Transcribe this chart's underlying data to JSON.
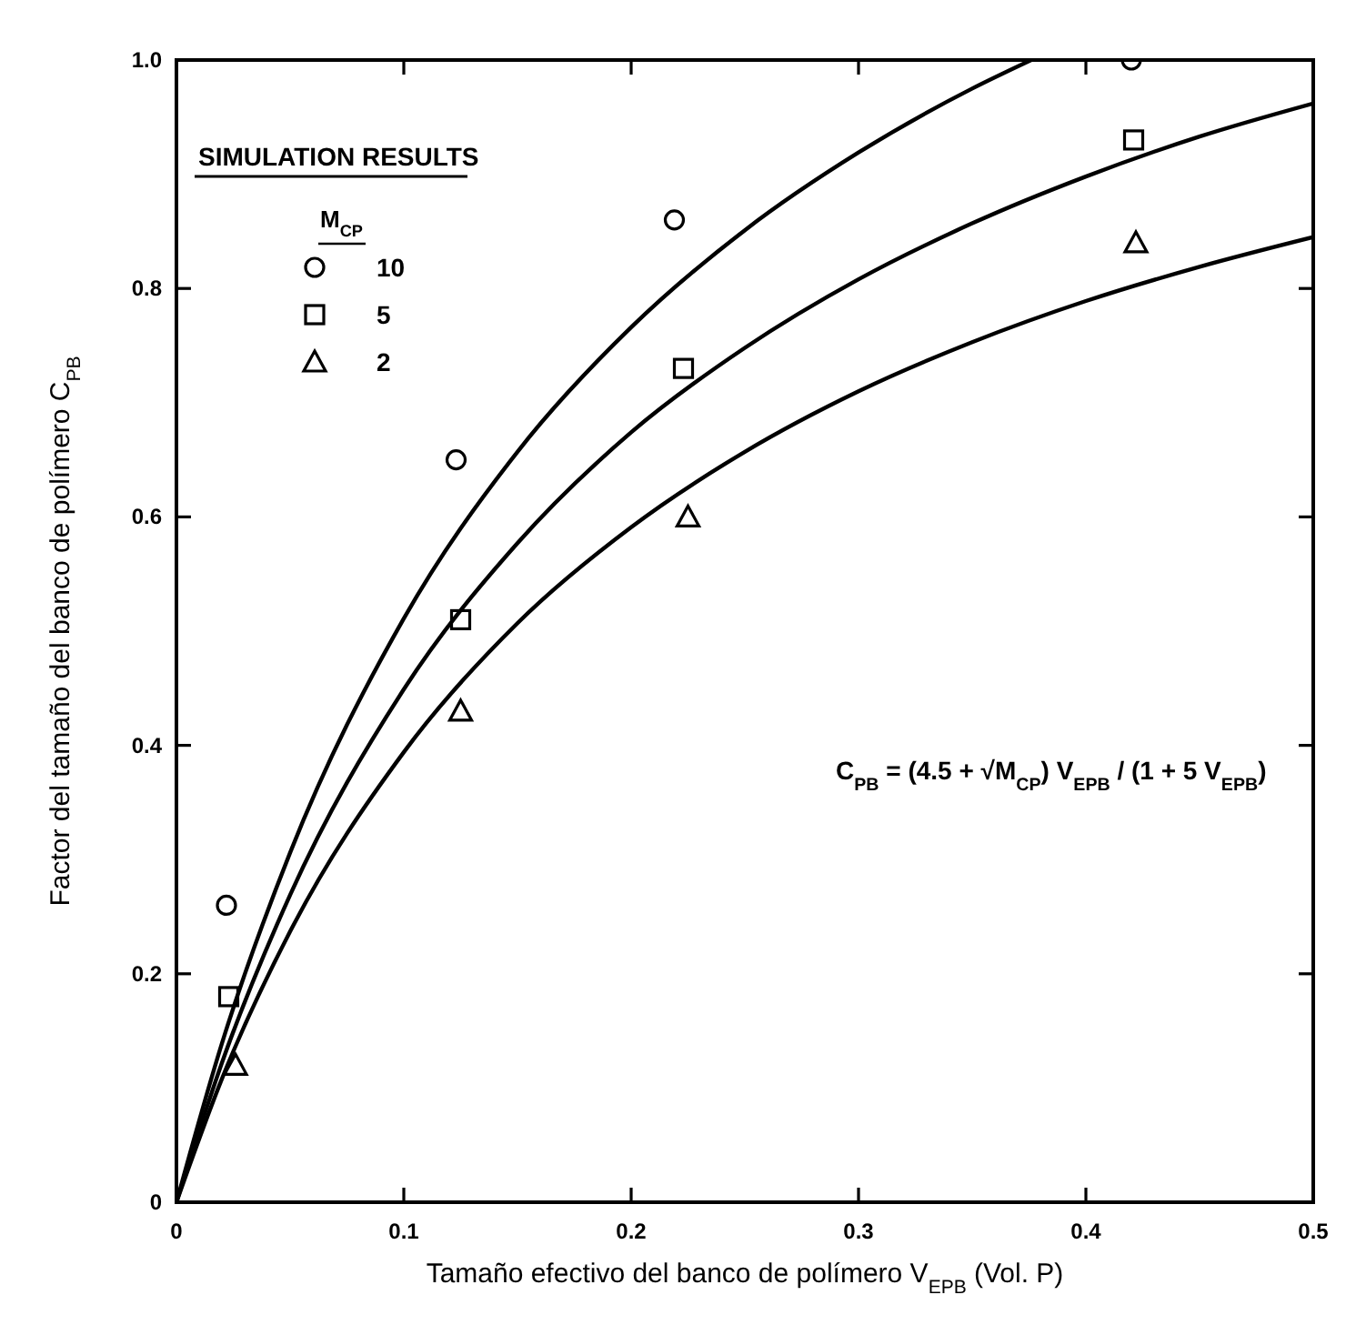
{
  "chart_data": {
    "type": "scatter",
    "xlabel": "Tamaño efectivo del banco de polímero V$_{EPB}$  (Vol. P)",
    "ylabel": "Factor del tamaño del banco de polímero C$_{PB}$",
    "legend_title": "M$_{CP}$",
    "annotations": [
      "SIMULATION RESULTS",
      "C$_{PB}$ = (4.5 + √M$_{CP}$) V$_{EPB}$ / (1 + 5 V$_{EPB}$)"
    ],
    "xlim": [
      0,
      0.5
    ],
    "ylim": [
      0,
      1
    ],
    "xticks": [
      0,
      0.1,
      0.2,
      0.3,
      0.4,
      0.5
    ],
    "yticks": [
      0,
      0.2,
      0.4,
      0.6,
      0.8,
      {
        "value": 1,
        "label": "1.0"
      }
    ],
    "grid": false,
    "legend": "top left",
    "series": [
      {
        "type": "line",
        "color": "#000000",
        "marker": "none",
        "line_style": "solid",
        "x": [
          0,
          0.02,
          0.05,
          0.1,
          0.15,
          0.2,
          0.25,
          0.3,
          0.35,
          0.376
        ],
        "values": [
          0,
          0.139,
          0.306,
          0.511,
          0.657,
          0.766,
          0.851,
          0.919,
          0.975,
          1.0
        ]
      },
      {
        "type": "line",
        "color": "#000000",
        "marker": "none",
        "line_style": "solid",
        "x": [
          0,
          0.02,
          0.05,
          0.1,
          0.15,
          0.2,
          0.25,
          0.3,
          0.35,
          0.4,
          0.45,
          0.5
        ],
        "values": [
          0,
          0.122,
          0.269,
          0.449,
          0.577,
          0.674,
          0.748,
          0.808,
          0.857,
          0.898,
          0.933,
          0.962
        ]
      },
      {
        "type": "line",
        "color": "#000000",
        "marker": "none",
        "line_style": "solid",
        "x": [
          0,
          0.02,
          0.05,
          0.1,
          0.15,
          0.2,
          0.25,
          0.3,
          0.35,
          0.4,
          0.45,
          0.5
        ],
        "values": [
          0,
          0.108,
          0.237,
          0.394,
          0.507,
          0.591,
          0.657,
          0.71,
          0.753,
          0.789,
          0.819,
          0.845
        ]
      },
      {
        "name": "10",
        "color": "#000000",
        "marker": "circle",
        "x": [
          0.022,
          0.123,
          0.219,
          0.42
        ],
        "values": [
          0.26,
          0.65,
          0.86,
          1.0
        ]
      },
      {
        "name": "5",
        "color": "#000000",
        "marker": "square",
        "x": [
          0.023,
          0.125,
          0.223,
          0.421
        ],
        "values": [
          0.18,
          0.51,
          0.73,
          0.93
        ]
      },
      {
        "name": "2",
        "color": "#000000",
        "marker": "triangle",
        "x": [
          0.026,
          0.125,
          0.225,
          0.422
        ],
        "values": [
          0.12,
          0.43,
          0.6,
          0.84
        ]
      }
    ]
  }
}
